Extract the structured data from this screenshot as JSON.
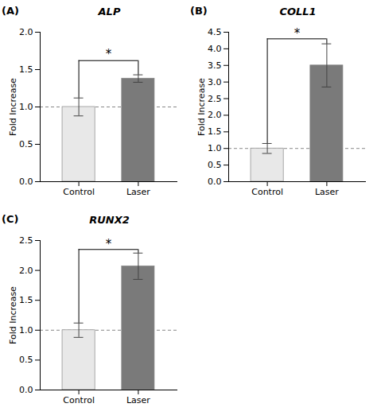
{
  "chart_data": [
    {
      "type": "bar",
      "title": "ALP",
      "y_label": "Fold Increase",
      "categories": [
        "Control",
        "Laser"
      ],
      "values": [
        1.0,
        1.38
      ],
      "errors": [
        0.12,
        0.05
      ],
      "colors": [
        "#e8e8e8",
        "#7a7a7a"
      ],
      "ylim": [
        0,
        2.0
      ],
      "yticks": [
        {
          "value": 0,
          "label": "0.0"
        },
        0.5,
        {
          "value": 1.0,
          "label": "1.0"
        },
        1.5,
        {
          "value": 2.0,
          "label": "2.0"
        }
      ],
      "reference_line": 1.0,
      "bracket_y": 1.62,
      "annotations": [
        {
          "text": "(A)"
        },
        {
          "text": "*",
          "y": 1.65
        }
      ],
      "grid": false
    },
    {
      "type": "bar",
      "title": "COLL1",
      "y_label": "Fold Increase",
      "categories": [
        "Control",
        "Laser"
      ],
      "values": [
        1.0,
        3.5
      ],
      "errors": [
        0.15,
        0.65
      ],
      "colors": [
        "#e8e8e8",
        "#7a7a7a"
      ],
      "ylim": [
        0,
        4.5
      ],
      "yticks": [
        {
          "value": 0,
          "label": "0.0"
        },
        0.5,
        {
          "value": 1.0,
          "label": "1.0"
        },
        1.5,
        {
          "value": 2.0,
          "label": "2.0"
        },
        2.5,
        {
          "value": 3.0,
          "label": "3.0"
        },
        3.5,
        {
          "value": 4.0,
          "label": "4.0"
        },
        4.5
      ],
      "reference_line": 1.0,
      "bracket_y": 4.3,
      "annotations": [
        {
          "text": "(B)"
        },
        {
          "text": "*",
          "y": 4.35
        }
      ],
      "grid": false
    },
    {
      "type": "bar",
      "title": "RUNX2",
      "y_label": "Fold Increase",
      "categories": [
        "Control",
        "Laser"
      ],
      "values": [
        1.0,
        2.07
      ],
      "errors": [
        0.12,
        0.22
      ],
      "colors": [
        "#e8e8e8",
        "#7a7a7a"
      ],
      "ylim": [
        0,
        2.5
      ],
      "yticks": [
        {
          "value": 0,
          "label": "0.0"
        },
        0.5,
        {
          "value": 1.0,
          "label": "1.0"
        },
        1.5,
        {
          "value": 2.0,
          "label": "2.0"
        },
        2.5
      ],
      "reference_line": 1.0,
      "bracket_y": 2.35,
      "annotations": [
        {
          "text": "(C)"
        },
        {
          "text": "*",
          "y": 2.38
        }
      ],
      "grid": false
    }
  ]
}
